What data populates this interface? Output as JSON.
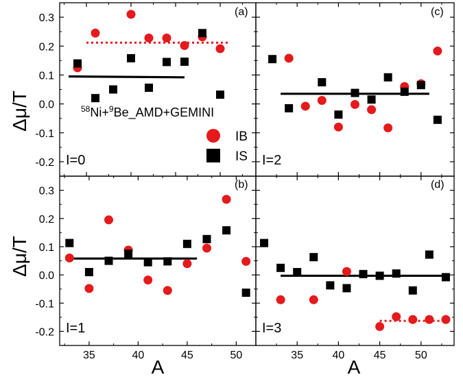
{
  "chart_data": [
    {
      "type": "scatter",
      "panel_tag": "(a)",
      "i_label": "I=0",
      "xlim": [
        32,
        54
      ],
      "ylim": [
        -0.25,
        0.35
      ],
      "series": [
        {
          "name": "IB",
          "color": "#e41a1c",
          "marker": "circle",
          "x": [
            34,
            36,
            40,
            42,
            44,
            46,
            48,
            50
          ],
          "y": [
            0.125,
            0.245,
            0.31,
            0.228,
            0.228,
            0.202,
            0.232,
            0.191
          ]
        },
        {
          "name": "IS",
          "color": "#000000",
          "marker": "square",
          "x": [
            34,
            36,
            38,
            40,
            42,
            44,
            46,
            48,
            50
          ],
          "y": [
            0.14,
            0.02,
            0.05,
            0.158,
            0.056,
            0.145,
            0.146,
            0.245,
            0.032
          ]
        }
      ],
      "fit_lines": [
        {
          "color": "#e41a1c",
          "style": "dotted",
          "x": [
            35,
            51
          ],
          "y": [
            0.212,
            0.212
          ]
        },
        {
          "color": "#000000",
          "style": "solid",
          "x": [
            33,
            46
          ],
          "y": [
            0.095,
            0.092
          ]
        }
      ]
    },
    {
      "type": "scatter",
      "panel_tag": "(c)",
      "i_label": "I=2",
      "xlim": [
        30,
        54
      ],
      "ylim": [
        -0.25,
        0.35
      ],
      "series": [
        {
          "name": "IB",
          "color": "#e41a1c",
          "marker": "circle",
          "x": [
            34,
            36,
            38,
            40,
            42,
            44,
            46,
            48,
            50,
            52
          ],
          "y": [
            0.158,
            -0.008,
            0.012,
            -0.08,
            -0.002,
            -0.02,
            -0.083,
            0.06,
            0.07,
            0.183
          ]
        },
        {
          "name": "IS",
          "color": "#000000",
          "marker": "square",
          "x": [
            32,
            34,
            38,
            40,
            42,
            44,
            46,
            48,
            50,
            52
          ],
          "y": [
            0.155,
            -0.015,
            0.075,
            -0.037,
            0.038,
            0.015,
            0.092,
            0.042,
            0.065,
            -0.055
          ]
        }
      ],
      "fit_lines": [
        {
          "color": "#000000",
          "style": "solid",
          "x": [
            33,
            51
          ],
          "y": [
            0.035,
            0.035
          ]
        }
      ]
    },
    {
      "type": "scatter",
      "panel_tag": "(b)",
      "i_label": "I=1",
      "xlim": [
        32,
        52
      ],
      "ylim": [
        -0.25,
        0.35
      ],
      "series": [
        {
          "name": "IB",
          "color": "#e41a1c",
          "marker": "circle",
          "x": [
            33,
            35,
            37,
            39,
            41,
            43,
            45,
            47,
            49,
            51
          ],
          "y": [
            0.06,
            -0.048,
            0.195,
            0.088,
            -0.018,
            -0.055,
            0.04,
            0.095,
            0.268,
            0.048
          ]
        },
        {
          "name": "IS",
          "color": "#000000",
          "marker": "square",
          "x": [
            33,
            35,
            37,
            39,
            41,
            43,
            45,
            47,
            49,
            51
          ],
          "y": [
            0.113,
            0.01,
            0.05,
            0.075,
            0.045,
            0.048,
            0.11,
            0.127,
            0.158,
            -0.063
          ]
        }
      ],
      "fit_lines": [
        {
          "color": "#000000",
          "style": "solid",
          "x": [
            33,
            46
          ],
          "y": [
            0.058,
            0.058
          ]
        }
      ]
    },
    {
      "type": "scatter",
      "panel_tag": "(d)",
      "i_label": "I=3",
      "xlim": [
        30,
        54
      ],
      "ylim": [
        -0.25,
        0.35
      ],
      "series": [
        {
          "name": "IB",
          "color": "#e41a1c",
          "marker": "circle",
          "x": [
            33,
            37,
            41,
            45,
            47,
            49,
            51,
            53
          ],
          "y": [
            -0.088,
            -0.088,
            0.012,
            -0.183,
            -0.148,
            -0.158,
            -0.158,
            -0.158
          ]
        },
        {
          "name": "IS",
          "color": "#000000",
          "marker": "square",
          "x": [
            31,
            33,
            35,
            37,
            39,
            41,
            43,
            45,
            47,
            49,
            51,
            53
          ],
          "y": [
            0.113,
            0.025,
            0.01,
            0.063,
            -0.037,
            -0.047,
            0.003,
            -0.003,
            0.005,
            -0.055,
            0.072,
            -0.008
          ]
        }
      ],
      "fit_lines": [
        {
          "color": "#000000",
          "style": "solid",
          "x": [
            33,
            53
          ],
          "y": [
            -0.003,
            -0.003
          ]
        },
        {
          "color": "#e41a1c",
          "style": "dotted",
          "x": [
            45,
            53
          ],
          "y": [
            -0.163,
            -0.163
          ]
        }
      ]
    }
  ],
  "ylabel": "Δμ/T",
  "xlabel": "A",
  "annotation": {
    "pre": "58",
    "ni": "Ni+",
    "pre2": "9",
    "rest": "Be_AMD+GEMINI"
  },
  "legend": [
    {
      "label": "IB",
      "marker": "circle",
      "color": "#e41a1c"
    },
    {
      "label": "IS",
      "marker": "square",
      "color": "#000000"
    }
  ],
  "y_ticks": [
    "-0.2",
    "-0.1",
    "0.0",
    "0.1",
    "0.2",
    "0.3"
  ],
  "y_tick_values": [
    -0.2,
    -0.1,
    0.0,
    0.1,
    0.2,
    0.3
  ],
  "x_ticks_left": [
    "35",
    "40",
    "45",
    "50"
  ],
  "x_tick_values_left": [
    35,
    40,
    45,
    50
  ],
  "x_ticks_right": [
    "35",
    "40",
    "45",
    "50"
  ],
  "x_tick_values_right": [
    35,
    40,
    45,
    50
  ]
}
